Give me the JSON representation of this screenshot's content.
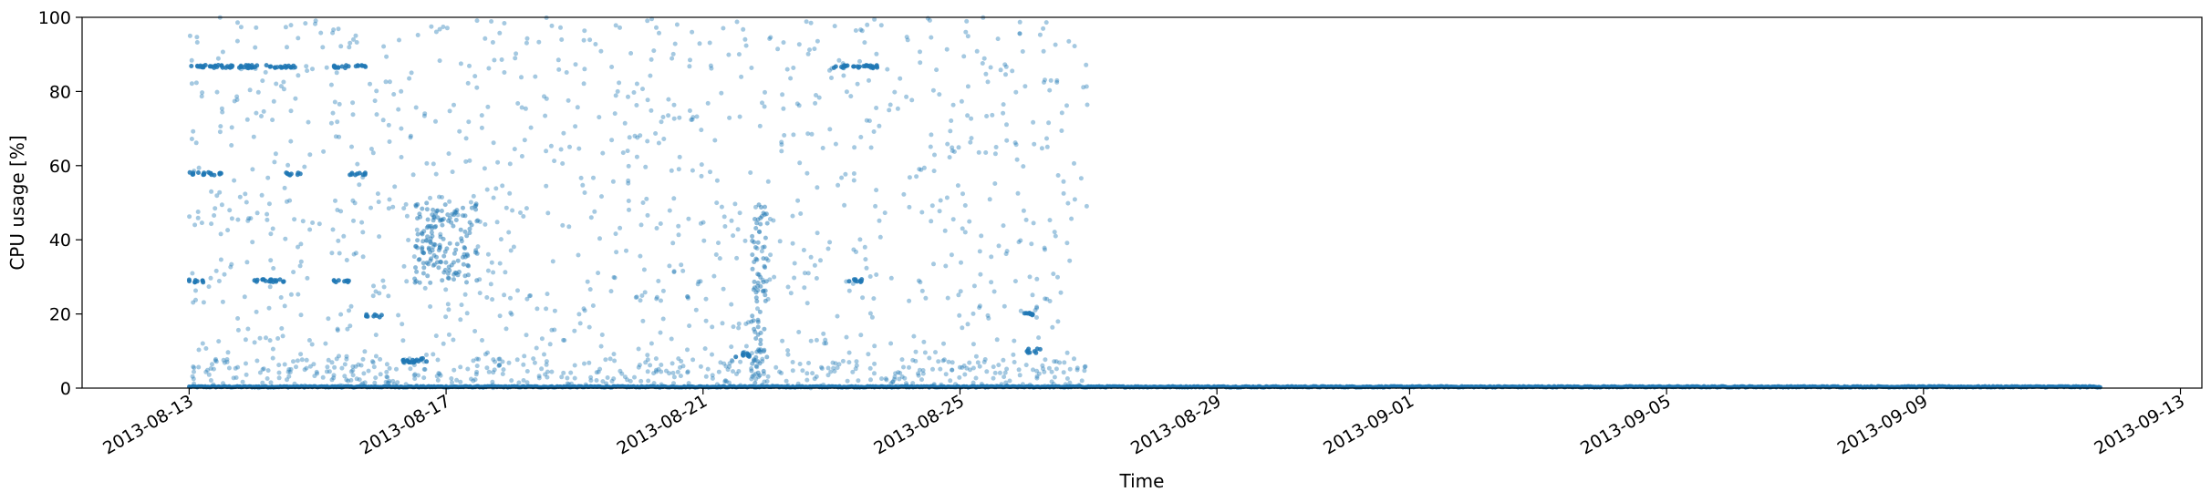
{
  "chart_data": {
    "type": "scatter",
    "title": "",
    "xlabel": "Time",
    "ylabel": "CPU usage [%]",
    "xlim": [
      "2013-08-11T08:00",
      "2013-09-13T08:00"
    ],
    "ylim": [
      0,
      100
    ],
    "xticks": [
      "2013-08-13",
      "2013-08-17",
      "2013-08-21",
      "2013-08-25",
      "2013-08-29",
      "2013-09-01",
      "2013-09-05",
      "2013-09-09",
      "2013-09-13"
    ],
    "yticks": [
      "0",
      "20",
      "40",
      "60",
      "80",
      "100"
    ],
    "grid": false,
    "legend": "none",
    "series": [
      {
        "color": "#1f77b4",
        "marker_alpha": 0.45,
        "clusters": [
          {
            "x_start": "2013-08-13T00:00",
            "x_end": "2013-08-13T12:00",
            "y": 86.7
          },
          {
            "x_start": "2013-08-13T12:00",
            "x_end": "2013-08-14T18:00",
            "y": 86.7
          },
          {
            "x_start": "2013-08-15T06:00",
            "x_end": "2013-08-15T18:00",
            "y": 86.7
          },
          {
            "x_start": "2013-08-13T00:00",
            "x_end": "2013-08-13T12:00",
            "y": 57.8
          },
          {
            "x_start": "2013-08-14T12:00",
            "x_end": "2013-08-14T18:00",
            "y": 57.8
          },
          {
            "x_start": "2013-08-15T12:00",
            "x_end": "2013-08-15T18:00",
            "y": 57.8
          },
          {
            "x_start": "2013-08-13T00:00",
            "x_end": "2013-08-13T06:00",
            "y": 28.9
          },
          {
            "x_start": "2013-08-14T00:00",
            "x_end": "2013-08-14T12:00",
            "y": 28.9
          },
          {
            "x_start": "2013-08-15T06:00",
            "x_end": "2013-08-15T12:00",
            "y": 28.9
          },
          {
            "x_start": "2013-08-15T18:00",
            "x_end": "2013-08-16T00:00",
            "y": 19.5
          },
          {
            "x_start": "2013-08-16T06:00",
            "x_end": "2013-08-16T18:00",
            "y": 7.5
          },
          {
            "x_start": "2013-08-23T00:00",
            "x_end": "2013-08-23T18:00",
            "y": 86.7
          },
          {
            "x_start": "2013-08-23T06:00",
            "x_end": "2013-08-23T12:00",
            "y": 29.0
          },
          {
            "x_start": "2013-08-21T12:00",
            "x_end": "2013-08-21T18:00",
            "y": 9.0
          },
          {
            "x_start": "2013-08-26T00:00",
            "x_end": "2013-08-26T06:00",
            "y": 20.0
          },
          {
            "x_start": "2013-08-26T00:00",
            "x_end": "2013-08-26T06:00",
            "y": 10.0
          }
        ],
        "baseline": {
          "y": 0.2,
          "x_start": "2013-08-13T00:00",
          "x_end": "2013-09-11T18:00"
        }
      }
    ]
  }
}
